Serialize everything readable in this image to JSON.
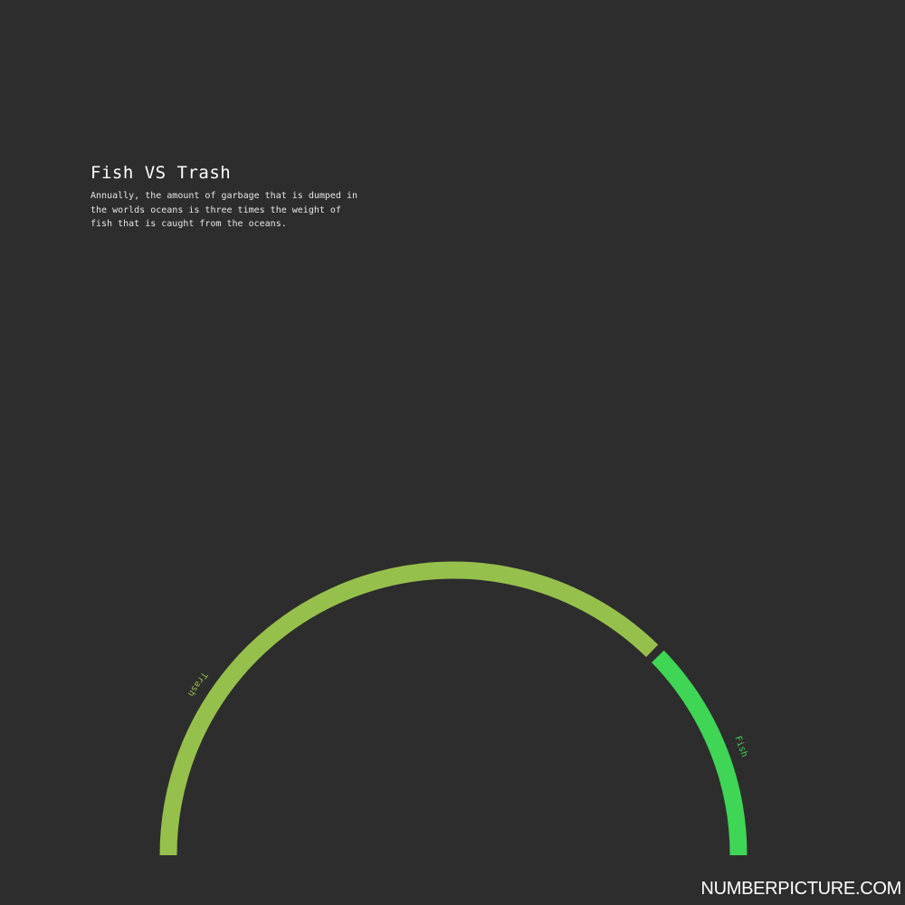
{
  "header": {
    "title": "Fish VS Trash",
    "subtitle": "Annually, the amount of garbage that is dumped in the worlds oceans is three times the weight of fish that is caught from the oceans."
  },
  "footer": {
    "watermark": "NUMBERPICTURE.COM"
  },
  "chart_data": {
    "type": "pie",
    "style": "semicircle-arc",
    "title": "Fish VS Trash",
    "subtitle": "Annually, the amount of garbage that is dumped in the worlds oceans is three times the weight of fish that is caught from the oceans.",
    "categories": [
      "Trash",
      "Fish"
    ],
    "values": [
      3,
      1
    ],
    "colors": [
      "#96c04c",
      "#3fd555"
    ],
    "legend": "labels on arcs",
    "grid": false
  },
  "colors": {
    "background": "#2d2d2d",
    "title": "#ffffff",
    "subtitle": "#e6e6e6"
  }
}
